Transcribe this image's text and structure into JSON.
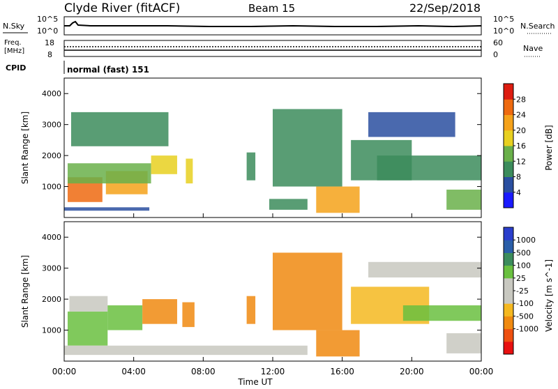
{
  "header": {
    "station": "Clyde River (fitACF)",
    "beam": "Beam 15",
    "date": "22/Sep/2018"
  },
  "top_panel": {
    "left_label": "N.Sky",
    "right_label": "N.Search",
    "left_ticks": [
      "10^5",
      "10^0"
    ],
    "right_ticks": [
      "10^5",
      "10^0"
    ]
  },
  "freq_panel": {
    "left_label_line1": "Freq.",
    "left_label_line2": "[MHz]",
    "right_label": "Nave",
    "left_ticks": [
      "18",
      "8"
    ],
    "right_ticks": [
      "60",
      "0"
    ]
  },
  "cpid": {
    "label": "CPID",
    "value": "normal (fast) 151"
  },
  "colors": {
    "power_scale": [
      "#1a1aff",
      "#2a4fa0",
      "#3c8c5c",
      "#6ab04a",
      "#e8d020",
      "#f5a21a",
      "#ee6a10",
      "#dd1c10"
    ],
    "velocity_scale": [
      "#e81010",
      "#ee5010",
      "#f08a10",
      "#f5b820",
      "#c8c8c0",
      "#c8c8c0",
      "#6ac040",
      "#3c8c5c",
      "#2a5ea8",
      "#2a3ecc"
    ]
  },
  "chart_data": [
    {
      "type": "heatmap",
      "panel": "power",
      "ylabel": "Slant Range [km]",
      "yticks": [
        "4000",
        "3000",
        "2000",
        "1000"
      ],
      "ylim": [
        0,
        4500
      ],
      "xlim": [
        0,
        24
      ],
      "colorbar_label": "Power [dB]",
      "colorbar_ticks": [
        "28",
        "24",
        "20",
        "16",
        "12",
        "8",
        "4"
      ],
      "colorbar_range": [
        0,
        32
      ],
      "regions": [
        {
          "x": [
            0.0,
            4.9
          ],
          "y": [
            220,
            330
          ],
          "v": 6
        },
        {
          "x": [
            0.2,
            2.2
          ],
          "y": [
            500,
            1300
          ],
          "v": 26
        },
        {
          "x": [
            2.4,
            4.8
          ],
          "y": [
            750,
            1500
          ],
          "v": 21
        },
        {
          "x": [
            0.2,
            5.0
          ],
          "y": [
            1100,
            1750
          ],
          "v": 14
        },
        {
          "x": [
            5.0,
            6.5
          ],
          "y": [
            1400,
            2000
          ],
          "v": 18
        },
        {
          "x": [
            7.0,
            7.4
          ],
          "y": [
            1100,
            1900
          ],
          "v": 17
        },
        {
          "x": [
            0.4,
            6.0
          ],
          "y": [
            2300,
            3400
          ],
          "v": 8
        },
        {
          "x": [
            10.5,
            11.0
          ],
          "y": [
            1200,
            2100
          ],
          "v": 9
        },
        {
          "x": [
            11.8,
            14.0
          ],
          "y": [
            250,
            600
          ],
          "v": 9
        },
        {
          "x": [
            12.0,
            16.0
          ],
          "y": [
            1000,
            3500
          ],
          "v": 9
        },
        {
          "x": [
            14.5,
            17.0
          ],
          "y": [
            150,
            1000
          ],
          "v": 20
        },
        {
          "x": [
            16.5,
            20.0
          ],
          "y": [
            1200,
            2500
          ],
          "v": 9
        },
        {
          "x": [
            17.5,
            22.5
          ],
          "y": [
            2600,
            3400
          ],
          "v": 7
        },
        {
          "x": [
            18.0,
            24.0
          ],
          "y": [
            1200,
            2000
          ],
          "v": 9
        },
        {
          "x": [
            22.0,
            24.0
          ],
          "y": [
            250,
            900
          ],
          "v": 13
        }
      ]
    },
    {
      "type": "heatmap",
      "panel": "velocity",
      "ylabel": "Slant Range [km]",
      "yticks": [
        "4000",
        "3000",
        "2000",
        "1000"
      ],
      "ylim": [
        0,
        4500
      ],
      "xlim": [
        0,
        24
      ],
      "xlabel": "Time UT",
      "xticks": [
        "00:00",
        "04:00",
        "08:00",
        "12:00",
        "16:00",
        "20:00",
        "00:00"
      ],
      "colorbar_label": "Velocity [m s^-1]",
      "colorbar_ticks": [
        "1000",
        "500",
        "100",
        "25",
        "-25",
        "-100",
        "-500",
        "-1000"
      ],
      "regions": [
        {
          "x": [
            0.2,
            2.5
          ],
          "y": [
            500,
            1600
          ],
          "v": 150
        },
        {
          "x": [
            0.3,
            2.5
          ],
          "y": [
            1600,
            2100
          ],
          "v": 0
        },
        {
          "x": [
            2.5,
            4.5
          ],
          "y": [
            1000,
            1800
          ],
          "v": 120
        },
        {
          "x": [
            4.5,
            6.5
          ],
          "y": [
            1200,
            2000
          ],
          "v": -150
        },
        {
          "x": [
            6.8,
            7.5
          ],
          "y": [
            1100,
            1900
          ],
          "v": -150
        },
        {
          "x": [
            10.5,
            11.0
          ],
          "y": [
            1200,
            2100
          ],
          "v": -300
        },
        {
          "x": [
            12.0,
            16.0
          ],
          "y": [
            1000,
            3500
          ],
          "v": -400
        },
        {
          "x": [
            0.0,
            14.0
          ],
          "y": [
            200,
            500
          ],
          "v": -20
        },
        {
          "x": [
            14.5,
            17.0
          ],
          "y": [
            150,
            1000
          ],
          "v": -150
        },
        {
          "x": [
            16.5,
            21.0
          ],
          "y": [
            1200,
            2400
          ],
          "v": -80
        },
        {
          "x": [
            17.5,
            24.0
          ],
          "y": [
            2700,
            3200
          ],
          "v": 0
        },
        {
          "x": [
            19.5,
            24.0
          ],
          "y": [
            1300,
            1800
          ],
          "v": 150
        },
        {
          "x": [
            22.0,
            24.0
          ],
          "y": [
            250,
            900
          ],
          "v": 0
        }
      ]
    }
  ]
}
